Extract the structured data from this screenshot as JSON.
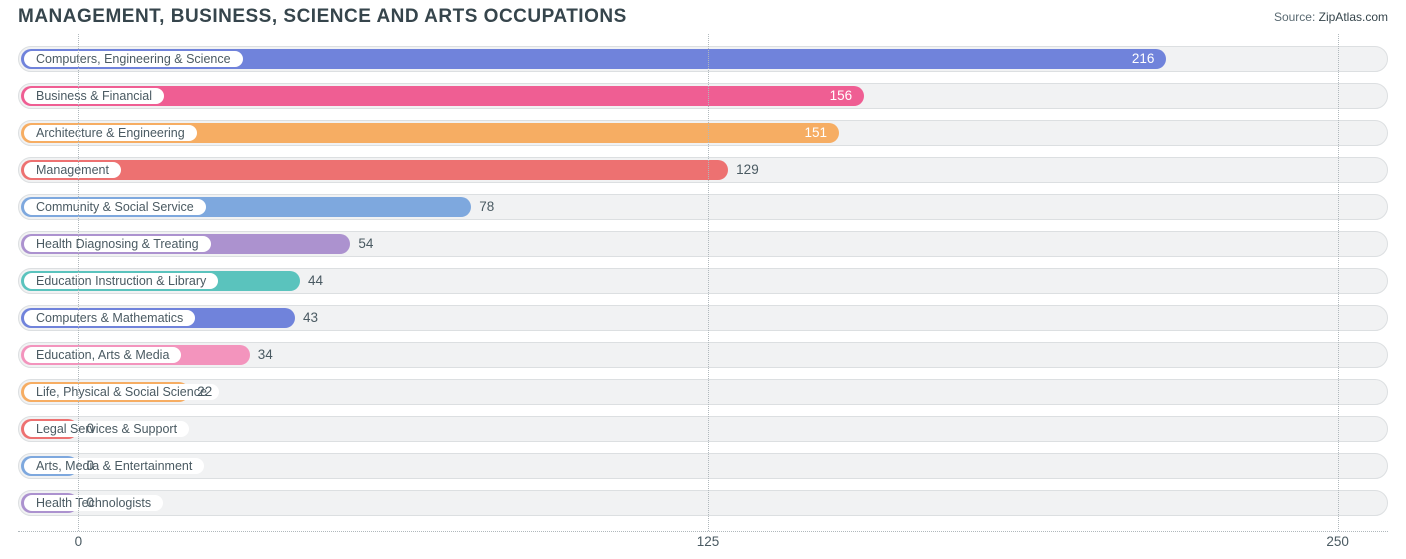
{
  "header": {
    "title": "MANAGEMENT, BUSINESS, SCIENCE AND ARTS OCCUPATIONS",
    "source_prefix": "Source: ",
    "source_brand": "ZipAtlas.com"
  },
  "chart": {
    "type": "bar-horizontal",
    "xmin": -12,
    "xmax": 260,
    "ticks": [
      {
        "value": 0,
        "label": "0"
      },
      {
        "value": 125,
        "label": "125"
      },
      {
        "value": 250,
        "label": "250"
      }
    ],
    "track_bg": "#f1f2f3",
    "track_border": "#dcdfe1",
    "grid_color": "#b0b8bc",
    "text_color": "#4a5a62",
    "label_fontsize": 12.5,
    "value_fontsize": 13.5,
    "title_color": "#36454c",
    "bars": [
      {
        "label": "Computers, Engineering & Science",
        "value": 216,
        "color": "#7083db",
        "value_inside": true,
        "value_color": "#ffffff"
      },
      {
        "label": "Business & Financial",
        "value": 156,
        "color": "#ef5e93",
        "value_inside": true,
        "value_color": "#ffffff"
      },
      {
        "label": "Architecture & Engineering",
        "value": 151,
        "color": "#f6ad63",
        "value_inside": true,
        "value_color": "#ffffff"
      },
      {
        "label": "Management",
        "value": 129,
        "color": "#ed7171",
        "value_inside": false,
        "value_color": "#4a5a62"
      },
      {
        "label": "Community & Social Service",
        "value": 78,
        "color": "#7ea8de",
        "value_inside": false,
        "value_color": "#4a5a62"
      },
      {
        "label": "Health Diagnosing & Treating",
        "value": 54,
        "color": "#ac92cf",
        "value_inside": false,
        "value_color": "#4a5a62"
      },
      {
        "label": "Education Instruction & Library",
        "value": 44,
        "color": "#5ac3bd",
        "value_inside": false,
        "value_color": "#4a5a62"
      },
      {
        "label": "Computers & Mathematics",
        "value": 43,
        "color": "#7083db",
        "value_inside": false,
        "value_color": "#4a5a62"
      },
      {
        "label": "Education, Arts & Media",
        "value": 34,
        "color": "#f394bd",
        "value_inside": false,
        "value_color": "#4a5a62"
      },
      {
        "label": "Life, Physical & Social Science",
        "value": 22,
        "color": "#f6ad63",
        "value_inside": false,
        "value_color": "#4a5a62"
      },
      {
        "label": "Legal Services & Support",
        "value": 0,
        "color": "#ed7171",
        "value_inside": false,
        "value_color": "#4a5a62"
      },
      {
        "label": "Arts, Media & Entertainment",
        "value": 0,
        "color": "#7ea8de",
        "value_inside": false,
        "value_color": "#4a5a62"
      },
      {
        "label": "Health Technologists",
        "value": 0,
        "color": "#ac92cf",
        "value_inside": false,
        "value_color": "#4a5a62"
      }
    ]
  }
}
